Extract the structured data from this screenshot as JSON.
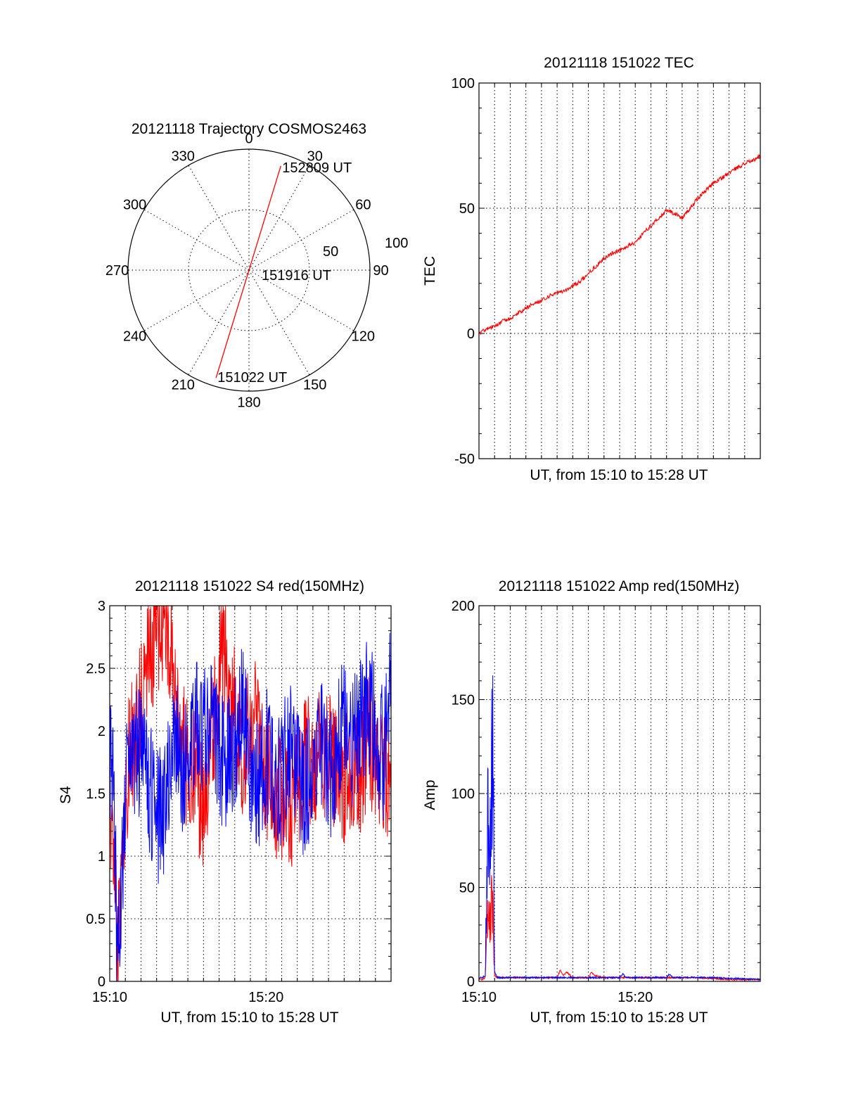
{
  "colors": {
    "red": "#ff0000",
    "blue": "#0000ff"
  },
  "chart_data": [
    {
      "id": "polar",
      "type": "polar-trajectory",
      "title": "20121118 Trajectory COSMOS2463",
      "angle_labels": [
        "0",
        "30",
        "60",
        "90",
        "120",
        "150",
        "180",
        "210",
        "240",
        "270",
        "300",
        "330"
      ],
      "radius_labels": [
        "50",
        "100"
      ],
      "rmax": 100,
      "trajectory": [
        {
          "az": 197,
          "r": 93,
          "label": "151022 UT"
        },
        {
          "az": 0,
          "r": 0,
          "label": "151916 UT"
        },
        {
          "az": 17,
          "r": 90,
          "label": "152809 UT"
        }
      ]
    },
    {
      "id": "tec",
      "type": "line",
      "title": "20121118 151022 TEC",
      "xlabel": "UT, from 15:10 to 15:28 UT",
      "ylabel": "TEC",
      "xlim": [
        0,
        18
      ],
      "ylim": [
        -50,
        100
      ],
      "yticks": [
        "-50",
        "0",
        "50",
        "100"
      ],
      "series": [
        {
          "color": "red",
          "x": [
            0,
            0.5,
            1,
            1.5,
            2,
            2.5,
            3,
            3.5,
            4,
            4.5,
            5,
            5.5,
            6,
            6.5,
            7,
            7.5,
            8,
            8.5,
            9,
            9.5,
            10,
            10.5,
            11,
            11.5,
            12,
            12.5,
            13,
            13.5,
            14,
            14.5,
            15,
            15.5,
            16,
            16.5,
            17,
            17.5,
            18
          ],
          "y": [
            0,
            2,
            3,
            5,
            6,
            8,
            10,
            12,
            13,
            15,
            16,
            17,
            19,
            21,
            24,
            27,
            30,
            32,
            33,
            35,
            36,
            40,
            43,
            46,
            49,
            48,
            46,
            50,
            54,
            57,
            60,
            62,
            64,
            66,
            68,
            69,
            71
          ]
        }
      ]
    },
    {
      "id": "s4",
      "type": "line",
      "title": "20121118 151022 S4 red(150MHz)",
      "xlabel": "UT, from 15:10 to 15:28 UT",
      "ylabel": "S4",
      "xlim": [
        0,
        18
      ],
      "ylim": [
        0,
        3
      ],
      "yticks": [
        "0",
        "0.5",
        "1",
        "1.5",
        "2",
        "2.5",
        "3"
      ],
      "xticks": [
        {
          "x": 0,
          "label": "15:10"
        },
        {
          "x": 10,
          "label": "15:20"
        }
      ],
      "series": [
        {
          "color": "red",
          "x": [
            0,
            0.3,
            0.5,
            1,
            1.5,
            2,
            2.5,
            3,
            3.5,
            4,
            4.5,
            5,
            5.5,
            6,
            6.5,
            7,
            7.5,
            8,
            8.5,
            9,
            9.5,
            10,
            10.5,
            11,
            11.5,
            12,
            12.5,
            13,
            13.5,
            14,
            14.5,
            15,
            15.5,
            16,
            16.5,
            17,
            17.5,
            18
          ],
          "y": [
            1.5,
            1.2,
            0.1,
            1.6,
            1.9,
            2.2,
            2.6,
            2.8,
            3.0,
            2.4,
            2.0,
            1.7,
            1.6,
            1.4,
            1.9,
            2.5,
            2.6,
            2.1,
            1.8,
            2.2,
            1.9,
            1.7,
            1.5,
            1.5,
            1.4,
            1.6,
            1.7,
            1.8,
            1.9,
            1.8,
            1.7,
            1.6,
            1.8,
            1.7,
            1.9,
            1.8,
            1.6,
            1.7
          ]
        },
        {
          "color": "blue",
          "x": [
            0,
            0.3,
            0.5,
            1,
            1.5,
            2,
            2.5,
            3,
            3.5,
            4,
            4.5,
            5,
            5.5,
            6,
            6.5,
            7,
            7.5,
            8,
            8.5,
            9,
            9.5,
            10,
            10.5,
            11,
            11.5,
            12,
            12.5,
            13,
            13.5,
            14,
            14.5,
            15,
            15.5,
            16,
            16.5,
            17,
            17.5,
            18
          ],
          "y": [
            1.8,
            1.4,
            0.1,
            1.5,
            1.7,
            1.9,
            1.6,
            1.3,
            1.4,
            2.0,
            1.8,
            1.6,
            2.1,
            1.9,
            2.3,
            1.8,
            1.7,
            1.9,
            2.2,
            1.6,
            1.5,
            1.8,
            1.7,
            1.6,
            1.9,
            1.7,
            1.5,
            1.8,
            2.0,
            1.6,
            1.8,
            2.2,
            1.9,
            2.0,
            2.2,
            2.0,
            1.8,
            2.4
          ]
        }
      ]
    },
    {
      "id": "amp",
      "type": "line",
      "title": "20121118 151022 Amp red(150MHz)",
      "xlabel": "UT, from 15:10 to 15:28 UT",
      "ylabel": "Amp",
      "xlim": [
        0,
        18
      ],
      "ylim": [
        0,
        200
      ],
      "yticks": [
        "0",
        "50",
        "100",
        "150",
        "200"
      ],
      "xticks": [
        {
          "x": 0,
          "label": "15:10"
        },
        {
          "x": 10,
          "label": "15:20"
        }
      ],
      "series": [
        {
          "color": "red",
          "x": [
            0,
            0.2,
            0.4,
            0.5,
            0.6,
            0.7,
            0.8,
            0.9,
            1.0,
            1.2,
            2,
            4,
            5,
            5.2,
            5.4,
            5.6,
            6,
            7,
            7.2,
            7.4,
            8,
            10,
            12,
            14,
            16,
            18
          ],
          "y": [
            1,
            1,
            2,
            25,
            45,
            30,
            40,
            35,
            3,
            2,
            2,
            2,
            2,
            6,
            3,
            5,
            2,
            2,
            5,
            3,
            2,
            2,
            2,
            2,
            1,
            1
          ]
        },
        {
          "color": "blue",
          "x": [
            0,
            0.2,
            0.4,
            0.5,
            0.6,
            0.7,
            0.8,
            0.9,
            1.0,
            1.2,
            2,
            4,
            6,
            8,
            9,
            9.2,
            9.4,
            10,
            12,
            12.2,
            12.4,
            13,
            15,
            18
          ],
          "y": [
            2,
            2,
            3,
            60,
            95,
            70,
            120,
            135,
            5,
            2,
            2,
            2,
            2,
            2,
            2,
            4,
            2,
            2,
            2,
            4,
            2,
            2,
            2,
            1
          ]
        }
      ]
    }
  ]
}
